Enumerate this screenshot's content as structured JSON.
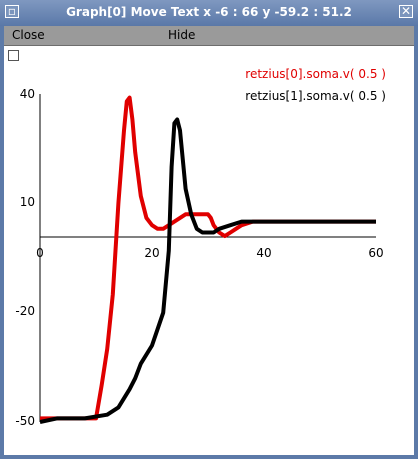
{
  "window": {
    "title": "Graph[0] Move Text x -6 : 66  y -59.2 : 51.2"
  },
  "menu": {
    "close_label": "Close",
    "hide_label": "Hide"
  },
  "colors": {
    "series0": "#e00000",
    "series1": "#000000"
  },
  "chart_data": {
    "type": "line",
    "title": "",
    "xlabel": "",
    "ylabel": "",
    "xlim": [
      0,
      60
    ],
    "ylim": [
      -50,
      40
    ],
    "x_ticks": [
      "0",
      "20",
      "40",
      "60"
    ],
    "y_ticks": [
      "40",
      "10",
      "-20",
      "-50"
    ],
    "grid": false,
    "legend": "top-right",
    "series": [
      {
        "name": "retzius[0].soma.v( 0.5 )",
        "color": "#e00000",
        "x": [
          0,
          4,
          10,
          11,
          12,
          13,
          14,
          15,
          15.5,
          16,
          16.5,
          17,
          18,
          19,
          20,
          21,
          22,
          23,
          24,
          25,
          26,
          27,
          28,
          29,
          30,
          30.5,
          31,
          32,
          33,
          34,
          35,
          36,
          38,
          40,
          44,
          50,
          60
        ],
        "y": [
          -49,
          -49,
          -49,
          -40,
          -30,
          -15,
          10,
          30,
          38,
          39,
          33,
          24,
          12,
          6,
          4,
          3,
          3,
          4,
          5,
          6,
          7,
          7,
          7,
          7,
          7,
          6,
          4,
          2,
          1,
          2,
          3,
          4,
          5,
          5,
          5,
          5,
          5
        ]
      },
      {
        "name": "retzius[1].soma.v( 0.5 )",
        "color": "#000000",
        "x": [
          0,
          3,
          8,
          12,
          14,
          16,
          17,
          18,
          20,
          22,
          23,
          23.5,
          24,
          24.5,
          25,
          25.5,
          26,
          27,
          28,
          29,
          30,
          31,
          32,
          34,
          36,
          40,
          50,
          60
        ],
        "y": [
          -50,
          -49,
          -49,
          -48,
          -46,
          -41,
          -38,
          -34,
          -29,
          -20,
          -3,
          20,
          32,
          33,
          30,
          22,
          14,
          7,
          3,
          2,
          2,
          2,
          3,
          4,
          5,
          5,
          5,
          5
        ]
      }
    ]
  }
}
